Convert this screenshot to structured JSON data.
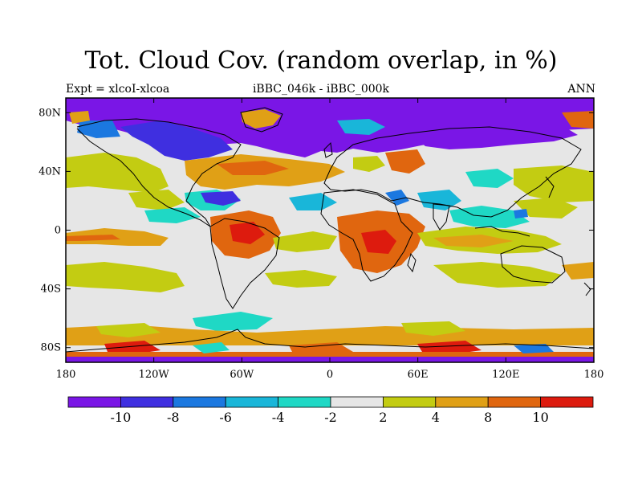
{
  "title": "Tot. Cloud Cov. (random overlap, in %)",
  "subtitle_left": "Expt = xlcoI-xlcoa",
  "subtitle_center": "iBBC_046k - iBBC_000k",
  "subtitle_right": "ANN",
  "map": {
    "projection": "cylindrical-equidistant",
    "lon_range": [
      -180,
      180
    ],
    "lat_range": [
      -90,
      90
    ],
    "x_ticks": [
      {
        "value": -180,
        "label": "180"
      },
      {
        "value": -120,
        "label": "120W"
      },
      {
        "value": -60,
        "label": "60W"
      },
      {
        "value": 0,
        "label": "0"
      },
      {
        "value": 60,
        "label": "60E"
      },
      {
        "value": 120,
        "label": "120E"
      },
      {
        "value": 180,
        "label": "180"
      }
    ],
    "y_ticks": [
      {
        "value": 80,
        "label": "80N"
      },
      {
        "value": 40,
        "label": "40N"
      },
      {
        "value": 0,
        "label": "0"
      },
      {
        "value": -40,
        "label": "40S"
      },
      {
        "value": -80,
        "label": "80S"
      }
    ],
    "background_color": "#e6e6e6"
  },
  "colorbar": {
    "colors": [
      "#7a16e6",
      "#3f2fe0",
      "#1b78e0",
      "#19b6d9",
      "#1fd8c5",
      "#e6e6e6",
      "#c3cc12",
      "#e0a016",
      "#e0660f",
      "#dd1b0e"
    ],
    "labels": [
      "-10",
      "-8",
      "-6",
      "-4",
      "-2",
      "2",
      "4",
      "8",
      "10"
    ]
  },
  "regions": [
    {
      "id": "arctic-band",
      "label": "Arctic decrease",
      "color": "#7a16e6"
    },
    {
      "id": "canada-decrease",
      "label": "Canada decrease",
      "color": "#3f2fe0"
    },
    {
      "id": "siberia-band",
      "label": "Siberia decrease",
      "color": "#7a16e6"
    },
    {
      "id": "n-pacific-yellow",
      "label": "North Pacific increase",
      "color": "#c3cc12"
    },
    {
      "id": "n-atlantic-orange",
      "label": "North Atlantic increase",
      "color": "#e0a016"
    },
    {
      "id": "amazon-orange",
      "label": "South America increase",
      "color": "#e0660f"
    },
    {
      "id": "africa-orange",
      "label": "Africa increase",
      "color": "#e0660f"
    },
    {
      "id": "indian-ocean-yellow",
      "label": "Indian Ocean increase",
      "color": "#c3cc12"
    },
    {
      "id": "s-ocean-orange",
      "label": "Southern Ocean increase",
      "color": "#e0a016"
    },
    {
      "id": "antarctic-red",
      "label": "Antarctic coast increase",
      "color": "#dd1b0e"
    },
    {
      "id": "caribbean-blue",
      "label": "Caribbean decrease",
      "color": "#1fd8c5"
    },
    {
      "id": "w-pacific-cyan",
      "label": "West Pacific decrease",
      "color": "#1fd8c5"
    }
  ]
}
